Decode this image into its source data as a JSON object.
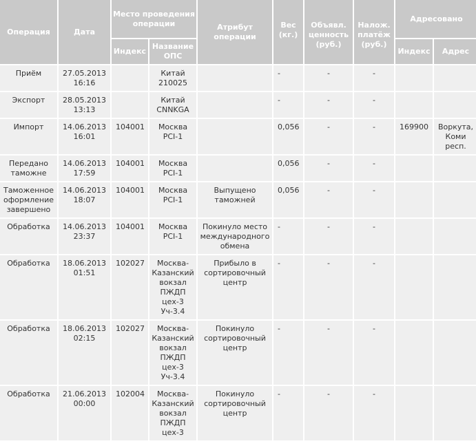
{
  "header": {
    "operation": "Операция",
    "date": "Дата",
    "place": "Место проведения операции",
    "place_index": "Индекс",
    "place_name": "Название ОПС",
    "attribute": "Атрибут операции",
    "weight": "Вес (кг.)",
    "declared_value": "Объявл. ценность (руб.)",
    "cod": "Налож. платёж (руб.)",
    "addressed": "Адресовано",
    "addr_index": "Индекс",
    "addr_address": "Адрес"
  },
  "rows": [
    {
      "operation": "Приём",
      "date": "27.05.2013\n16:16",
      "index": "",
      "place": "Китай\n210025",
      "attribute": "",
      "weight": "-",
      "value": "-",
      "cod": "-",
      "addr_index": "",
      "addr": ""
    },
    {
      "operation": "Экспорт",
      "date": "28.05.2013\n13:13",
      "index": "",
      "place": "Китай\nCNNKGA",
      "attribute": "",
      "weight": "-",
      "value": "-",
      "cod": "-",
      "addr_index": "",
      "addr": ""
    },
    {
      "operation": "Импорт",
      "date": "14.06.2013\n16:01",
      "index": "104001",
      "place": "Москва\nPCI-1",
      "attribute": "",
      "weight": "0,056",
      "value": "-",
      "cod": "-",
      "addr_index": "169900",
      "addr": "Воркута,\nКоми\nресп."
    },
    {
      "operation": "Передано\nтаможне",
      "date": "14.06.2013\n17:59",
      "index": "104001",
      "place": "Москва\nPCI-1",
      "attribute": "",
      "weight": "0,056",
      "value": "-",
      "cod": "-",
      "addr_index": "",
      "addr": ""
    },
    {
      "operation": "Таможенное\nоформление\nзавершено",
      "date": "14.06.2013\n18:07",
      "index": "104001",
      "place": "Москва\nPCI-1",
      "attribute": "Выпущено\nтаможней",
      "weight": "0,056",
      "value": "-",
      "cod": "-",
      "addr_index": "",
      "addr": ""
    },
    {
      "operation": "Обработка",
      "date": "14.06.2013\n23:37",
      "index": "104001",
      "place": "Москва\nPCI-1",
      "attribute": "Покинуло место\nмеждународного\nобмена",
      "weight": "-",
      "value": "-",
      "cod": "-",
      "addr_index": "",
      "addr": ""
    },
    {
      "operation": "Обработка",
      "date": "18.06.2013\n01:51",
      "index": "102027",
      "place": "Москва-\nКазанский\nвокзал\nПЖДП\nцех-3\nУч-3.4",
      "attribute": "Прибыло в\nсортировочный\nцентр",
      "weight": "-",
      "value": "-",
      "cod": "-",
      "addr_index": "",
      "addr": ""
    },
    {
      "operation": "Обработка",
      "date": "18.06.2013\n02:15",
      "index": "102027",
      "place": "Москва-\nКазанский\nвокзал\nПЖДП\nцех-3\nУч-3.4",
      "attribute": "Покинуло\nсортировочный\nцентр",
      "weight": "-",
      "value": "-",
      "cod": "-",
      "addr_index": "",
      "addr": ""
    },
    {
      "operation": "Обработка",
      "date": "21.06.2013\n00:00",
      "index": "102004",
      "place": "Москва-\nКазанский\nвокзал\nПЖДП\nцех-3",
      "attribute": "Покинуло\nсортировочный\nцентр",
      "weight": "-",
      "value": "-",
      "cod": "-",
      "addr_index": "",
      "addr": ""
    }
  ]
}
